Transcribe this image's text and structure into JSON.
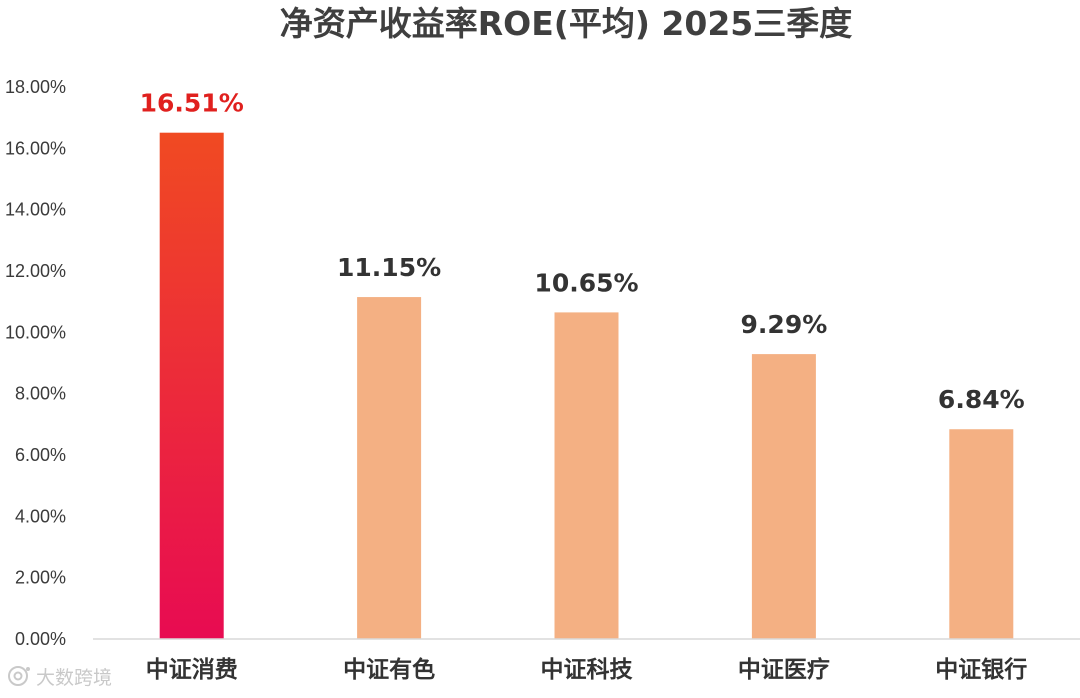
{
  "chart_data": {
    "type": "bar",
    "title": "净资产收益率ROE(平均) 2025三季度",
    "categories": [
      "中证消费",
      "中证有色",
      "中证科技",
      "中证医疗",
      "中证银行"
    ],
    "values": [
      16.51,
      11.15,
      10.65,
      9.29,
      6.84
    ],
    "data_labels": [
      "16.51%",
      "11.15%",
      "10.65%",
      "9.29%",
      "6.84%"
    ],
    "ylim": [
      0,
      18
    ],
    "yticks": [
      "0.00%",
      "2.00%",
      "4.00%",
      "6.00%",
      "8.00%",
      "10.00%",
      "12.00%",
      "14.00%",
      "16.00%",
      "18.00%"
    ],
    "ytick_values": [
      0,
      2,
      4,
      6,
      8,
      10,
      12,
      14,
      16,
      18
    ],
    "xlabel": "",
    "ylabel": "",
    "grid": false,
    "highlight_index": 0,
    "colors": {
      "bar": "#f4b083",
      "highlight_top": "#f04a22",
      "highlight_bottom": "#e80b52",
      "highlight_label": "#e0201e",
      "label": "#333333",
      "axis": "#d9d9d9"
    }
  },
  "watermark": {
    "icon": "logo-icon",
    "text": "大数跨境"
  }
}
